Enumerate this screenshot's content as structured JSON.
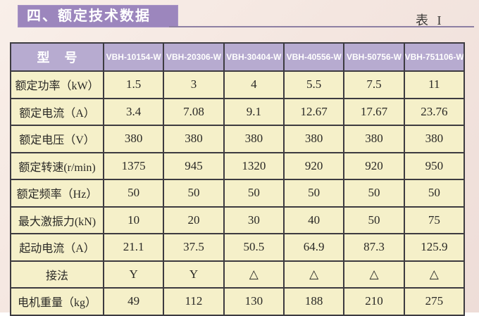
{
  "header": {
    "section_title": "四、额定技术数据",
    "table_ref": "表 I"
  },
  "table": {
    "model_label": "型 号",
    "models": [
      "VBH-10154-W",
      "VBH-20306-W",
      "VBH-30404-W",
      "VBH-40556-W",
      "VBH-50756-W",
      "VBH-751106-W"
    ],
    "rows": [
      {
        "label": "额定功率（kW）",
        "values": [
          "1.5",
          "3",
          "4",
          "5.5",
          "7.5",
          "11"
        ]
      },
      {
        "label": "额定电流（A）",
        "values": [
          "3.4",
          "7.08",
          "9.1",
          "12.67",
          "17.67",
          "23.76"
        ]
      },
      {
        "label": "额定电压（V）",
        "values": [
          "380",
          "380",
          "380",
          "380",
          "380",
          "380"
        ]
      },
      {
        "label": "额定转速(r/min)",
        "values": [
          "1375",
          "945",
          "1320",
          "920",
          "920",
          "950"
        ]
      },
      {
        "label": "额定频率（Hz）",
        "values": [
          "50",
          "50",
          "50",
          "50",
          "50",
          "50"
        ]
      },
      {
        "label": "最大激振力(kN)",
        "values": [
          "10",
          "20",
          "30",
          "40",
          "50",
          "75"
        ]
      },
      {
        "label": "起动电流（A）",
        "values": [
          "21.1",
          "37.5",
          "50.5",
          "64.9",
          "87.3",
          "125.9"
        ]
      },
      {
        "label": "接法",
        "values": [
          "Y",
          "Y",
          "△",
          "△",
          "△",
          "△"
        ]
      },
      {
        "label": "电机重量（kg）",
        "values": [
          "49",
          "112",
          "130",
          "188",
          "210",
          "275"
        ]
      }
    ]
  },
  "colors": {
    "accent_purple": "#9c86bd",
    "header_lavender": "#b7abd0",
    "cell_background": "#f5f0c9",
    "grid_line": "#3d3b40",
    "text_ink": "#2a2926"
  }
}
